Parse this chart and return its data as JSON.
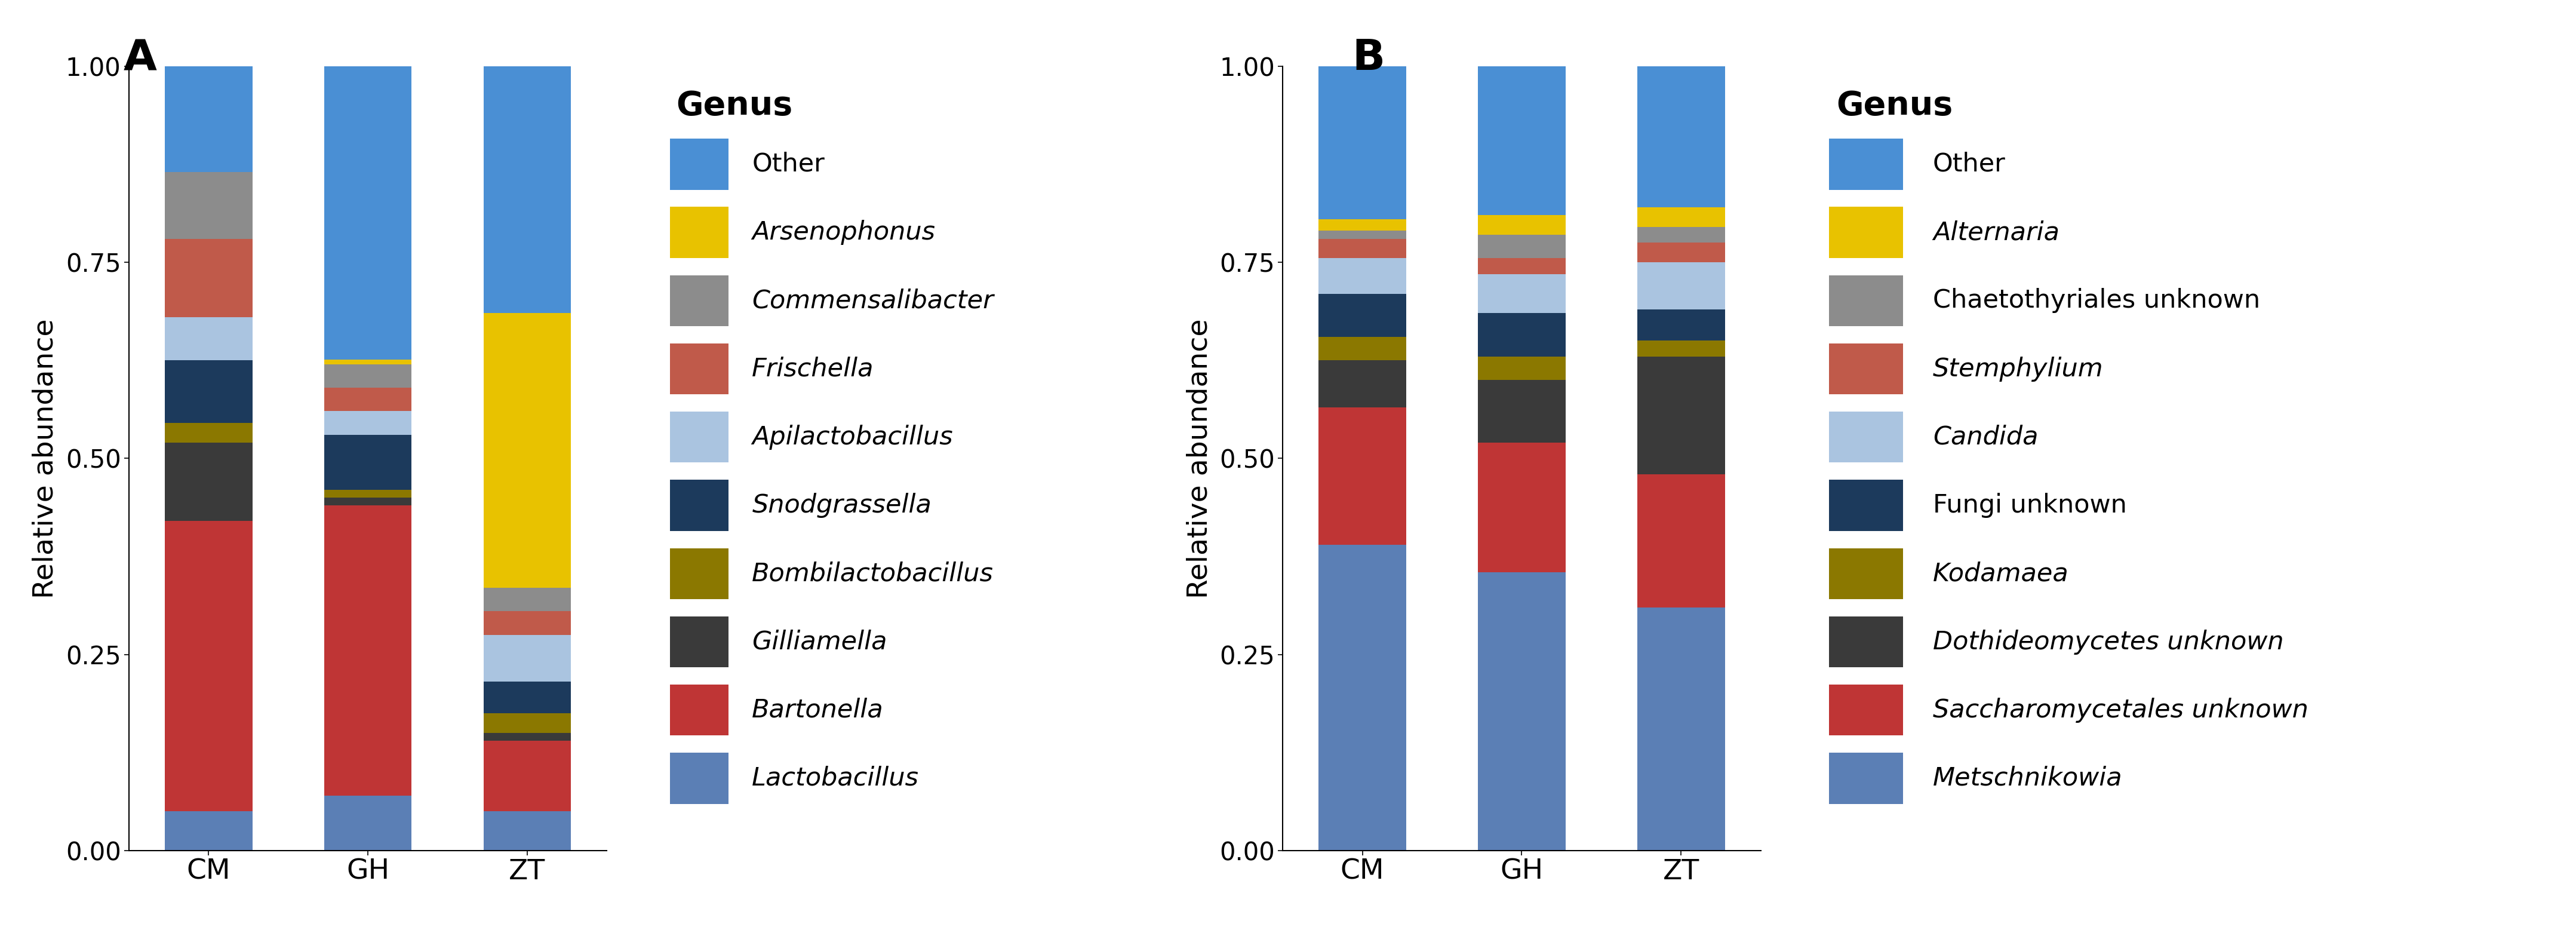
{
  "panel_A": {
    "categories": [
      "CM",
      "GH",
      "ZT"
    ],
    "genera": [
      "Lactobacillus",
      "Bartonella",
      "Gilliamella",
      "Bombilactobacillus",
      "Snodgrassella",
      "Apilactobacillus",
      "Frischella",
      "Commensalibacter",
      "Arsenophonus",
      "Other"
    ],
    "colors_list": [
      "#5b7fb5",
      "#bf3535",
      "#3a3a3a",
      "#8b7800",
      "#1c3a5c",
      "#aac4e0",
      "#c05a4a",
      "#8c8c8c",
      "#e8c200",
      "#4a8fd4"
    ],
    "values": {
      "CM": [
        0.05,
        0.37,
        0.1,
        0.025,
        0.08,
        0.055,
        0.1,
        0.085,
        0.0,
        0.135
      ],
      "GH": [
        0.07,
        0.37,
        0.01,
        0.01,
        0.07,
        0.03,
        0.03,
        0.03,
        0.006,
        0.374
      ],
      "ZT": [
        0.05,
        0.09,
        0.01,
        0.025,
        0.04,
        0.06,
        0.03,
        0.03,
        0.35,
        0.315
      ]
    },
    "ylabel": "Relative abundance",
    "legend_title": "Genus",
    "legend_order": [
      "Other",
      "Arsenophonus",
      "Commensalibacter",
      "Frischella",
      "Apilactobacillus",
      "Snodgrassella",
      "Bombilactobacillus",
      "Gilliamella",
      "Bartonella",
      "Lactobacillus"
    ],
    "italic_entries": [
      "Arsenophonus",
      "Commensalibacter",
      "Frischella",
      "Apilactobacillus",
      "Snodgrassella",
      "Bombilactobacillus",
      "Gilliamella",
      "Bartonella",
      "Lactobacillus"
    ],
    "panel_label": "A"
  },
  "panel_B": {
    "categories": [
      "CM",
      "GH",
      "ZT"
    ],
    "genera": [
      "Metschnikowia",
      "Saccharomycetales unknown",
      "Dothideomycetes unknown",
      "Kodamaea",
      "Fungi unknown",
      "Candida",
      "Stemphylium",
      "Chaetothyriales unknown",
      "Alternaria",
      "Other"
    ],
    "colors_list": [
      "#5b7fb5",
      "#bf3535",
      "#3a3a3a",
      "#8b7800",
      "#1c3a5c",
      "#aac4e0",
      "#c05a4a",
      "#8c8c8c",
      "#e8c200",
      "#4a8fd4"
    ],
    "values": {
      "CM": [
        0.39,
        0.175,
        0.06,
        0.03,
        0.055,
        0.045,
        0.025,
        0.01,
        0.015,
        0.195
      ],
      "GH": [
        0.355,
        0.165,
        0.08,
        0.03,
        0.055,
        0.05,
        0.02,
        0.03,
        0.025,
        0.19
      ],
      "ZT": [
        0.31,
        0.17,
        0.15,
        0.02,
        0.04,
        0.06,
        0.025,
        0.02,
        0.025,
        0.18
      ]
    },
    "ylabel": "Relative abundance",
    "legend_title": "Genus",
    "legend_order": [
      "Other",
      "Alternaria",
      "Chaetothyriales unknown",
      "Stemphylium",
      "Candida",
      "Fungi unknown",
      "Kodamaea",
      "Dothideomycetes unknown",
      "Saccharomycetales unknown",
      "Metschnikowia"
    ],
    "italic_entries": [
      "Metschnikowia",
      "Saccharomycetales unknown",
      "Dothideomycetes unknown",
      "Kodamaea",
      "Stemphylium",
      "Candida",
      "Alternaria"
    ],
    "panel_label": "B"
  }
}
